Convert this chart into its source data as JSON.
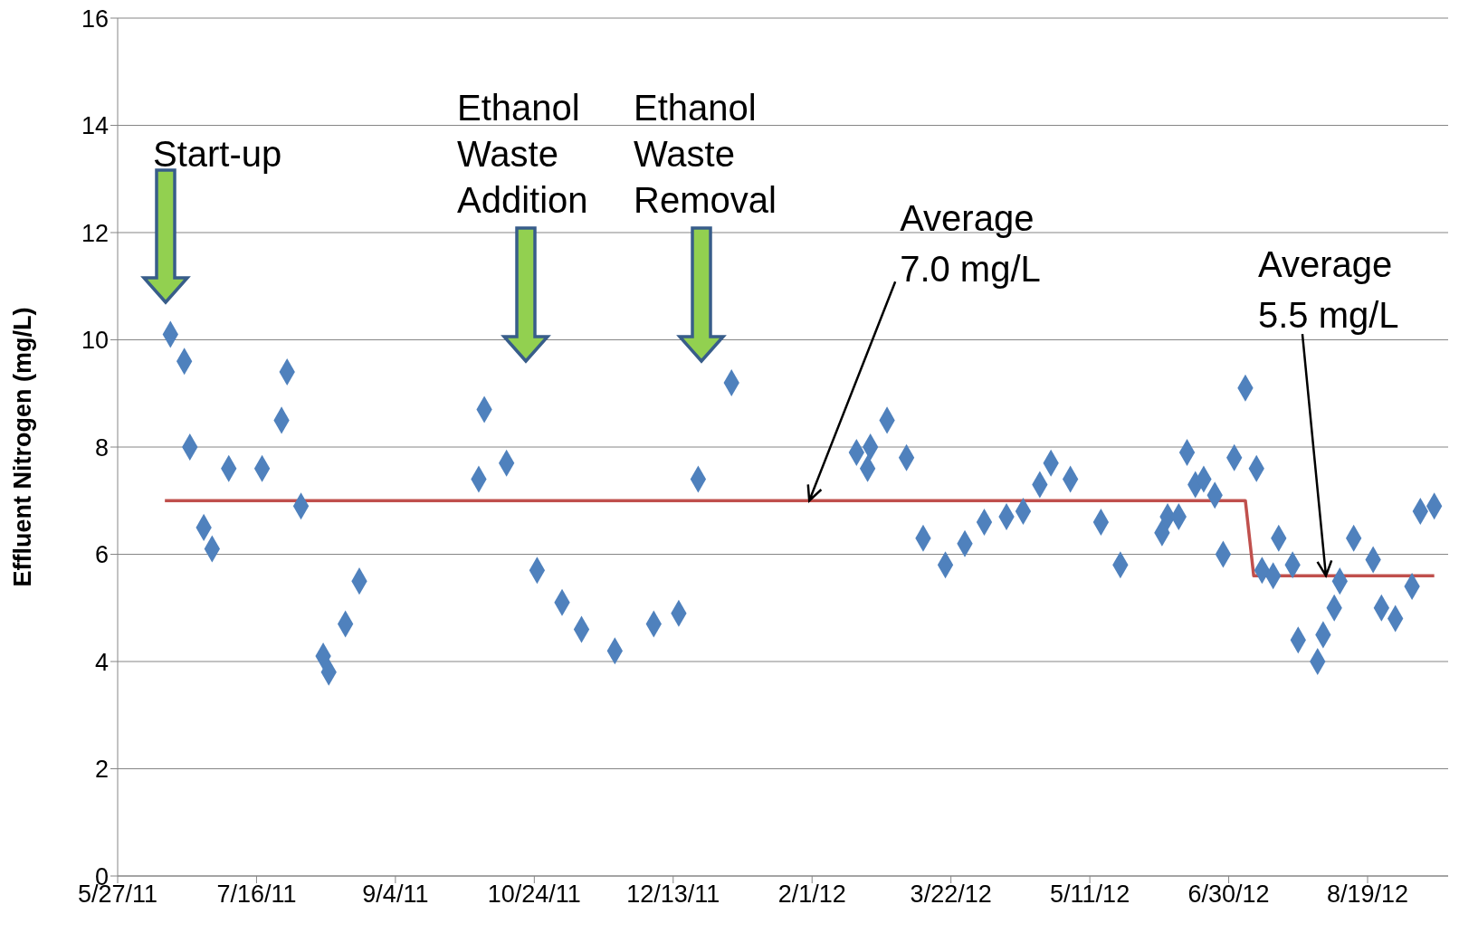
{
  "chart_data": {
    "type": "scatter",
    "ylabel": "Effluent Nitrogen (mg/L)",
    "xlim": [
      "2011-05-27",
      "2012-09-17"
    ],
    "xticks": [
      {
        "value": "2011-05-27",
        "label": "5/27/11"
      },
      {
        "value": "2011-07-16",
        "label": "7/16/11"
      },
      {
        "value": "2011-09-04",
        "label": "9/4/11"
      },
      {
        "value": "2011-10-24",
        "label": "10/24/11"
      },
      {
        "value": "2011-12-13",
        "label": "12/13/11"
      },
      {
        "value": "2012-02-01",
        "label": "2/1/12"
      },
      {
        "value": "2012-03-22",
        "label": "3/22/12"
      },
      {
        "value": "2012-05-11",
        "label": "5/11/12"
      },
      {
        "value": "2012-06-30",
        "label": "6/30/12"
      },
      {
        "value": "2012-08-19",
        "label": "8/19/12"
      }
    ],
    "ylim": [
      0,
      16
    ],
    "yticks": [
      0,
      2,
      4,
      6,
      8,
      10,
      12,
      14,
      16
    ],
    "grid": "y",
    "series": [
      {
        "type": "scatter",
        "color": "#4f81bd",
        "marker": "diamond",
        "x": [
          "2011-06-15",
          "2011-06-20",
          "2011-06-22",
          "2011-06-27",
          "2011-06-30",
          "2011-07-06",
          "2011-07-18",
          "2011-07-25",
          "2011-07-27",
          "2011-08-01",
          "2011-08-09",
          "2011-08-11",
          "2011-08-17",
          "2011-08-22",
          "2011-10-04",
          "2011-10-06",
          "2011-10-14",
          "2011-10-25",
          "2011-11-03",
          "2011-11-10",
          "2011-11-22",
          "2011-12-06",
          "2011-12-15",
          "2011-12-22",
          "2012-01-03",
          "2012-02-17",
          "2012-02-21",
          "2012-02-22",
          "2012-02-28",
          "2012-03-06",
          "2012-03-12",
          "2012-03-20",
          "2012-03-27",
          "2012-04-03",
          "2012-04-11",
          "2012-04-17",
          "2012-04-23",
          "2012-04-27",
          "2012-05-04",
          "2012-05-15",
          "2012-05-22",
          "2012-06-06",
          "2012-06-08",
          "2012-06-12",
          "2012-06-15",
          "2012-06-18",
          "2012-06-21",
          "2012-06-25",
          "2012-06-28",
          "2012-07-02",
          "2012-07-06",
          "2012-07-10",
          "2012-07-12",
          "2012-07-16",
          "2012-07-18",
          "2012-07-23",
          "2012-07-25",
          "2012-08-01",
          "2012-08-03",
          "2012-08-07",
          "2012-08-09",
          "2012-08-14",
          "2012-08-21",
          "2012-08-24",
          "2012-08-29",
          "2012-09-04",
          "2012-09-07",
          "2012-09-12"
        ],
        "values": [
          10.1,
          9.6,
          8.0,
          6.5,
          6.1,
          7.6,
          7.6,
          8.5,
          9.4,
          6.9,
          4.1,
          3.8,
          4.7,
          5.5,
          7.4,
          8.7,
          7.7,
          5.7,
          5.1,
          4.6,
          4.2,
          4.7,
          4.9,
          7.4,
          9.2,
          7.9,
          7.6,
          8.0,
          8.5,
          7.8,
          6.3,
          5.8,
          6.2,
          6.6,
          6.7,
          6.8,
          7.3,
          7.7,
          7.4,
          6.6,
          5.8,
          6.4,
          6.7,
          6.7,
          7.9,
          7.3,
          7.4,
          7.1,
          6.0,
          7.8,
          9.1,
          7.6,
          5.7,
          5.6,
          6.3,
          5.8,
          4.4,
          4.0,
          4.5,
          5.0,
          5.5,
          6.3,
          5.9,
          5.0,
          4.8,
          5.4,
          6.8,
          6.9
        ]
      },
      {
        "type": "line",
        "color": "#c0504d",
        "marker": "none",
        "x": [
          "2011-06-13",
          "2012-07-06",
          "2012-07-09",
          "2012-09-12"
        ],
        "values": [
          7.0,
          7.0,
          5.6,
          5.6
        ]
      }
    ],
    "annotations": [
      "Start-up",
      "Ethanol\nWaste\nAddition",
      "Ethanol\nWaste\nRemoval",
      {
        "text": "Average\n7.0 mg/L",
        "x": "2012-01-31",
        "y": 7.0
      },
      {
        "text": "Average\n5.5 mg/L",
        "x": "2012-08-04",
        "y": 5.6
      }
    ]
  }
}
